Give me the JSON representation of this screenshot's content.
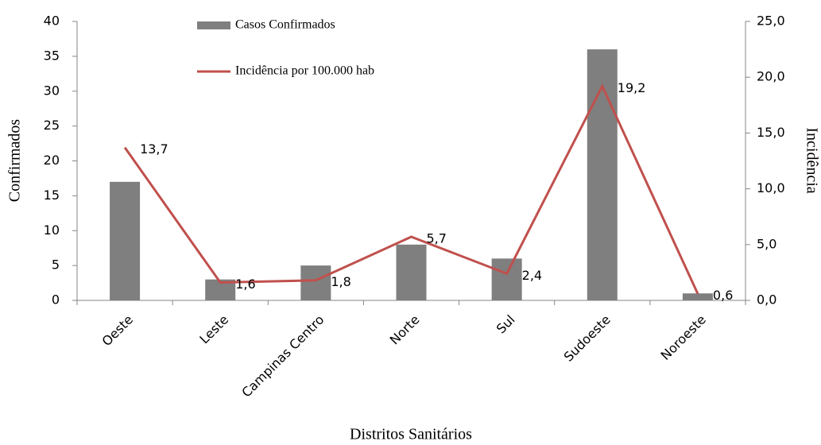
{
  "chart_data": {
    "type": "combo",
    "x_label": "Distritos Sanitários",
    "y_label": "Confirmados",
    "y2_label": "Incidência",
    "categories": [
      "Oeste",
      "Leste",
      "Campinas Centro",
      "Norte",
      "Sul",
      "Sudoeste",
      "Noroeste"
    ],
    "series": [
      {
        "name": "Casos Confirmados",
        "type": "bar",
        "color": "#7f7f7f",
        "values": [
          17,
          3,
          5,
          8,
          6,
          36,
          1
        ]
      },
      {
        "name": "Incidência por 100.000 hab",
        "type": "line",
        "axis": "y2",
        "color": "#c0504d",
        "values": [
          13.7,
          1.6,
          1.8,
          5.7,
          2.4,
          19.2,
          0.6
        ],
        "value_labels": [
          "13,7",
          "1,6",
          "1,8",
          "5,7",
          "2,4",
          "19,2",
          "0,6"
        ]
      }
    ],
    "ylim": [
      0,
      40
    ],
    "yticks": [
      0,
      5,
      10,
      15,
      20,
      25,
      30,
      35,
      40
    ],
    "y2lim": [
      0,
      25
    ],
    "y2ticks": [
      {
        "value": 0,
        "label": "0,0"
      },
      {
        "value": 5,
        "label": "5,0"
      },
      {
        "value": 10,
        "label": "10,0"
      },
      {
        "value": 15,
        "label": "15,0"
      },
      {
        "value": 20,
        "label": "20,0"
      },
      {
        "value": 25,
        "label": "25,0"
      }
    ],
    "grid": false
  }
}
